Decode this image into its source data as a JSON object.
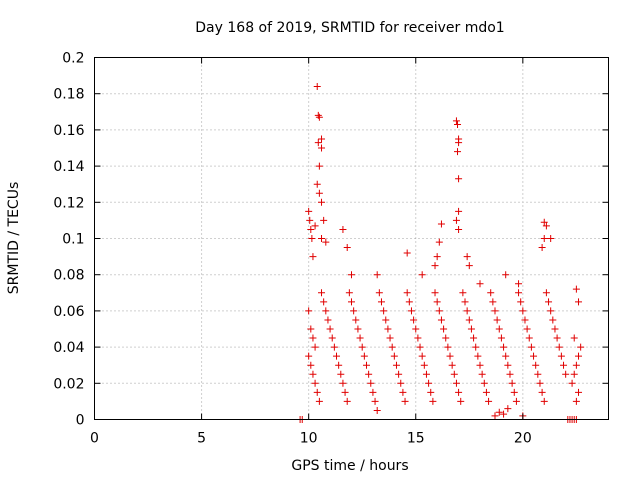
{
  "chart_data": {
    "type": "scatter",
    "title": "Day 168 of 2019, SRMTID for receiver mdo1",
    "xlabel": "GPS time / hours",
    "ylabel": "SRMTID / TECUs",
    "xlim": [
      0,
      24
    ],
    "ylim": [
      0,
      0.2
    ],
    "grid": true,
    "marker": "+",
    "color": "#e00000",
    "x_ticks": [
      0,
      5,
      10,
      15,
      20
    ],
    "x_tick_labels": [
      "0",
      "5",
      "10",
      "15",
      "20"
    ],
    "y_ticks": [
      0,
      0.02,
      0.04,
      0.06,
      0.08,
      0.1,
      0.12,
      0.14,
      0.16,
      0.18,
      0.2
    ],
    "y_tick_labels": [
      "0",
      "0.02",
      "0.04",
      "0.06",
      "0.08",
      "0.1",
      "0.12",
      "0.14",
      "0.16",
      "0.18",
      "0.2"
    ],
    "series": [
      {
        "name": "SRMTID",
        "points": [
          [
            9.6,
            0.0
          ],
          [
            9.7,
            0.0
          ],
          [
            22.1,
            0.0
          ],
          [
            22.2,
            0.0
          ],
          [
            22.3,
            0.0
          ],
          [
            22.4,
            0.0
          ],
          [
            22.5,
            0.0
          ],
          [
            10.0,
            0.115
          ],
          [
            10.05,
            0.11
          ],
          [
            10.1,
            0.105
          ],
          [
            10.15,
            0.1
          ],
          [
            10.2,
            0.09
          ],
          [
            10.4,
            0.184
          ],
          [
            10.45,
            0.168
          ],
          [
            10.5,
            0.167
          ],
          [
            10.45,
            0.153
          ],
          [
            10.6,
            0.155
          ],
          [
            10.6,
            0.15
          ],
          [
            10.5,
            0.14
          ],
          [
            10.4,
            0.13
          ],
          [
            10.5,
            0.125
          ],
          [
            10.6,
            0.12
          ],
          [
            10.7,
            0.11
          ],
          [
            10.3,
            0.107
          ],
          [
            10.6,
            0.1
          ],
          [
            10.8,
            0.098
          ],
          [
            16.9,
            0.165
          ],
          [
            16.95,
            0.163
          ],
          [
            17.0,
            0.155
          ],
          [
            17.0,
            0.153
          ],
          [
            16.95,
            0.148
          ],
          [
            17.0,
            0.133
          ],
          [
            17.0,
            0.115
          ],
          [
            16.9,
            0.11
          ],
          [
            17.0,
            0.105
          ],
          [
            21.0,
            0.109
          ],
          [
            21.1,
            0.107
          ],
          [
            21.0,
            0.1
          ],
          [
            20.9,
            0.095
          ],
          [
            21.3,
            0.1
          ],
          [
            16.2,
            0.108
          ],
          [
            16.1,
            0.098
          ],
          [
            16.0,
            0.09
          ],
          [
            15.9,
            0.085
          ],
          [
            11.6,
            0.105
          ],
          [
            11.8,
            0.095
          ],
          [
            12.0,
            0.08
          ],
          [
            13.2,
            0.08
          ],
          [
            14.6,
            0.092
          ],
          [
            15.3,
            0.08
          ],
          [
            17.4,
            0.09
          ],
          [
            17.5,
            0.085
          ],
          [
            18.0,
            0.075
          ],
          [
            19.2,
            0.08
          ],
          [
            19.8,
            0.075
          ],
          [
            22.5,
            0.072
          ],
          [
            22.6,
            0.065
          ],
          [
            22.4,
            0.045
          ],
          [
            22.7,
            0.04
          ],
          [
            22.6,
            0.035
          ],
          [
            22.5,
            0.03
          ],
          [
            22.4,
            0.025
          ],
          [
            22.3,
            0.02
          ],
          [
            22.6,
            0.015
          ],
          [
            22.5,
            0.01
          ],
          [
            10.0,
            0.06
          ],
          [
            10.1,
            0.05
          ],
          [
            10.2,
            0.045
          ],
          [
            10.3,
            0.04
          ],
          [
            10.0,
            0.035
          ],
          [
            10.1,
            0.03
          ],
          [
            10.2,
            0.025
          ],
          [
            10.3,
            0.02
          ],
          [
            10.4,
            0.015
          ],
          [
            10.5,
            0.01
          ],
          [
            10.6,
            0.07
          ],
          [
            10.7,
            0.065
          ],
          [
            10.8,
            0.06
          ],
          [
            10.9,
            0.055
          ],
          [
            11.0,
            0.05
          ],
          [
            11.1,
            0.045
          ],
          [
            11.2,
            0.04
          ],
          [
            11.3,
            0.035
          ],
          [
            11.4,
            0.03
          ],
          [
            11.5,
            0.025
          ],
          [
            11.6,
            0.02
          ],
          [
            11.7,
            0.015
          ],
          [
            11.8,
            0.01
          ],
          [
            11.9,
            0.07
          ],
          [
            12.0,
            0.065
          ],
          [
            12.1,
            0.06
          ],
          [
            12.2,
            0.055
          ],
          [
            12.3,
            0.05
          ],
          [
            12.4,
            0.045
          ],
          [
            12.5,
            0.04
          ],
          [
            12.6,
            0.035
          ],
          [
            12.7,
            0.03
          ],
          [
            12.8,
            0.025
          ],
          [
            12.9,
            0.02
          ],
          [
            13.0,
            0.015
          ],
          [
            13.1,
            0.01
          ],
          [
            13.2,
            0.005
          ],
          [
            13.3,
            0.07
          ],
          [
            13.4,
            0.065
          ],
          [
            13.5,
            0.06
          ],
          [
            13.6,
            0.055
          ],
          [
            13.7,
            0.05
          ],
          [
            13.8,
            0.045
          ],
          [
            13.9,
            0.04
          ],
          [
            14.0,
            0.035
          ],
          [
            14.1,
            0.03
          ],
          [
            14.2,
            0.025
          ],
          [
            14.3,
            0.02
          ],
          [
            14.4,
            0.015
          ],
          [
            14.5,
            0.01
          ],
          [
            14.6,
            0.07
          ],
          [
            14.7,
            0.065
          ],
          [
            14.8,
            0.06
          ],
          [
            14.9,
            0.055
          ],
          [
            15.0,
            0.05
          ],
          [
            15.1,
            0.045
          ],
          [
            15.2,
            0.04
          ],
          [
            15.3,
            0.035
          ],
          [
            15.4,
            0.03
          ],
          [
            15.5,
            0.025
          ],
          [
            15.6,
            0.02
          ],
          [
            15.7,
            0.015
          ],
          [
            15.8,
            0.01
          ],
          [
            15.9,
            0.07
          ],
          [
            16.0,
            0.065
          ],
          [
            16.1,
            0.06
          ],
          [
            16.2,
            0.055
          ],
          [
            16.3,
            0.05
          ],
          [
            16.4,
            0.045
          ],
          [
            16.5,
            0.04
          ],
          [
            16.6,
            0.035
          ],
          [
            16.7,
            0.03
          ],
          [
            16.8,
            0.025
          ],
          [
            16.9,
            0.02
          ],
          [
            17.0,
            0.015
          ],
          [
            17.1,
            0.01
          ],
          [
            17.2,
            0.07
          ],
          [
            17.3,
            0.065
          ],
          [
            17.4,
            0.06
          ],
          [
            17.5,
            0.055
          ],
          [
            17.6,
            0.05
          ],
          [
            17.7,
            0.045
          ],
          [
            17.8,
            0.04
          ],
          [
            17.9,
            0.035
          ],
          [
            18.0,
            0.03
          ],
          [
            18.1,
            0.025
          ],
          [
            18.2,
            0.02
          ],
          [
            18.3,
            0.015
          ],
          [
            18.4,
            0.01
          ],
          [
            18.5,
            0.07
          ],
          [
            18.6,
            0.065
          ],
          [
            18.7,
            0.06
          ],
          [
            18.8,
            0.055
          ],
          [
            18.9,
            0.05
          ],
          [
            19.0,
            0.045
          ],
          [
            19.1,
            0.04
          ],
          [
            19.2,
            0.035
          ],
          [
            19.3,
            0.03
          ],
          [
            19.4,
            0.025
          ],
          [
            19.5,
            0.02
          ],
          [
            19.6,
            0.015
          ],
          [
            19.7,
            0.01
          ],
          [
            19.8,
            0.07
          ],
          [
            19.9,
            0.065
          ],
          [
            20.0,
            0.06
          ],
          [
            20.1,
            0.055
          ],
          [
            20.2,
            0.05
          ],
          [
            20.3,
            0.045
          ],
          [
            20.4,
            0.04
          ],
          [
            20.5,
            0.035
          ],
          [
            20.6,
            0.03
          ],
          [
            20.7,
            0.025
          ],
          [
            20.8,
            0.02
          ],
          [
            20.9,
            0.015
          ],
          [
            21.0,
            0.01
          ],
          [
            21.1,
            0.07
          ],
          [
            21.2,
            0.065
          ],
          [
            21.3,
            0.06
          ],
          [
            21.4,
            0.055
          ],
          [
            21.5,
            0.05
          ],
          [
            21.6,
            0.045
          ],
          [
            21.7,
            0.04
          ],
          [
            21.8,
            0.035
          ],
          [
            21.9,
            0.03
          ],
          [
            22.0,
            0.025
          ],
          [
            18.7,
            0.002
          ],
          [
            18.9,
            0.004
          ],
          [
            19.1,
            0.003
          ],
          [
            19.3,
            0.006
          ],
          [
            20.0,
            0.002
          ]
        ]
      }
    ]
  }
}
